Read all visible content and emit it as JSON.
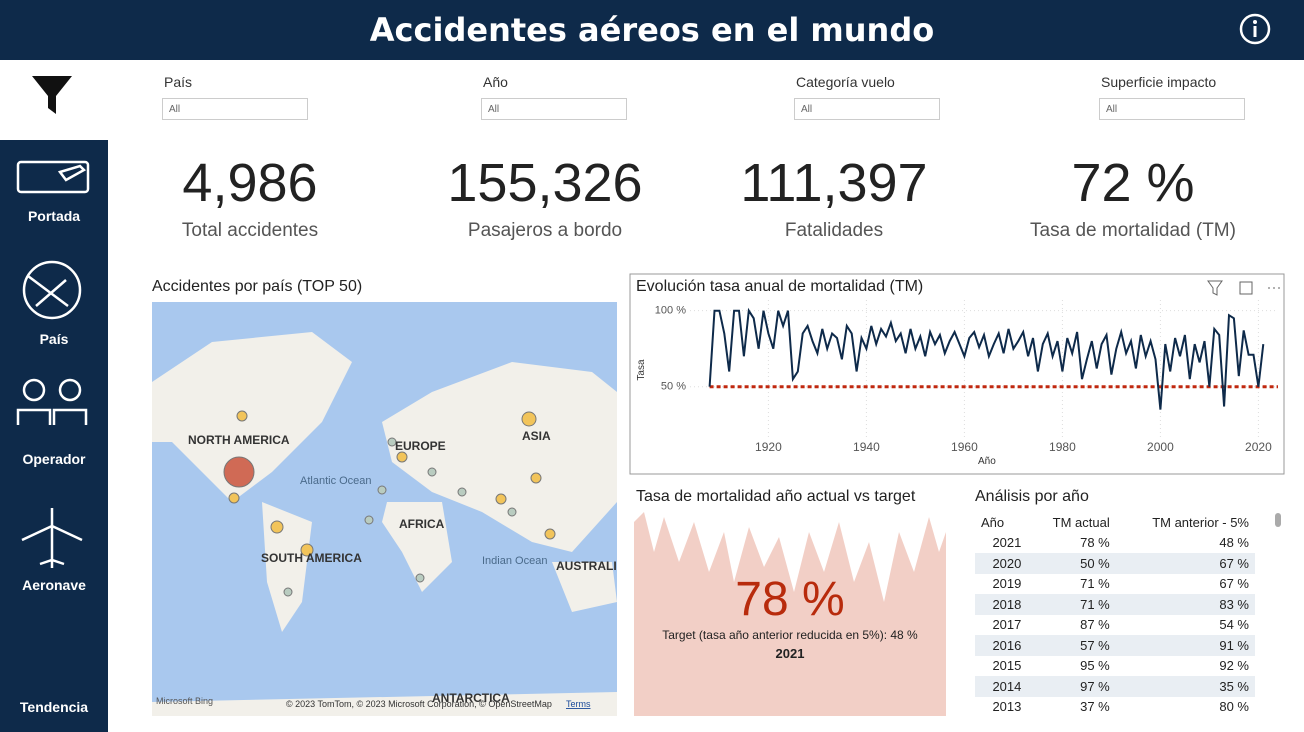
{
  "header": {
    "title": "Accidentes aéreos en el mundo"
  },
  "nav": [
    "Portada",
    "País",
    "Operador",
    "Aeronave",
    "Tendencia"
  ],
  "filters": [
    {
      "label": "País",
      "value": "All"
    },
    {
      "label": "Año",
      "value": "All"
    },
    {
      "label": "Categoría vuelo",
      "value": "All"
    },
    {
      "label": "Superficie impacto",
      "value": "All"
    }
  ],
  "kpis": [
    {
      "value": "4,986",
      "label": "Total accidentes"
    },
    {
      "value": "155,326",
      "label": "Pasajeros a bordo"
    },
    {
      "value": "111,397",
      "label": "Fatalidades"
    },
    {
      "value": "72 %",
      "label": "Tasa de mortalidad (TM)"
    }
  ],
  "map": {
    "title": "Accidentes por país (TOP 50)",
    "labels": [
      "NORTH AMERICA",
      "EUROPE",
      "ASIA",
      "AFRICA",
      "SOUTH AMERICA",
      "AUSTRALIA",
      "ANTARCTICA"
    ],
    "oceans": [
      "Atlantic Ocean",
      "Indian Ocean"
    ],
    "logo": "Microsoft Bing",
    "attribution": "© 2023 TomTom, © 2023 Microsoft Corporation, © OpenStreetMap",
    "terms": "Terms"
  },
  "chart_data": {
    "type": "line",
    "title": "Evolución tasa anual de mortalidad (TM)",
    "y_label": "Tasa",
    "x_label": "Año",
    "x": [
      1908,
      1909,
      1910,
      1911,
      1912,
      1913,
      1914,
      1915,
      1916,
      1917,
      1918,
      1919,
      1920,
      1921,
      1922,
      1923,
      1924,
      1925,
      1926,
      1927,
      1928,
      1929,
      1930,
      1931,
      1932,
      1933,
      1934,
      1935,
      1936,
      1937,
      1938,
      1939,
      1940,
      1941,
      1942,
      1943,
      1944,
      1945,
      1946,
      1947,
      1948,
      1949,
      1950,
      1951,
      1952,
      1953,
      1954,
      1955,
      1956,
      1957,
      1958,
      1959,
      1960,
      1961,
      1962,
      1963,
      1964,
      1965,
      1966,
      1967,
      1968,
      1969,
      1970,
      1971,
      1972,
      1973,
      1974,
      1975,
      1976,
      1977,
      1978,
      1979,
      1980,
      1981,
      1982,
      1983,
      1984,
      1985,
      1986,
      1987,
      1988,
      1989,
      1990,
      1991,
      1992,
      1993,
      1994,
      1995,
      1996,
      1997,
      1998,
      1999,
      2000,
      2001,
      2002,
      2003,
      2004,
      2005,
      2006,
      2007,
      2008,
      2009,
      2010,
      2011,
      2012,
      2013,
      2014,
      2015,
      2016,
      2017,
      2018,
      2019,
      2020,
      2021
    ],
    "series": [
      {
        "name": "TM",
        "color": "#0e2a4a",
        "values": [
          50,
          100,
          100,
          85,
          60,
          100,
          100,
          70,
          100,
          95,
          75,
          100,
          85,
          75,
          100,
          90,
          100,
          55,
          60,
          85,
          90,
          80,
          72,
          88,
          75,
          85,
          82,
          68,
          90,
          85,
          60,
          82,
          75,
          90,
          78,
          88,
          83,
          92,
          80,
          85,
          72,
          88,
          75,
          83,
          70,
          86,
          78,
          84,
          72,
          80,
          86,
          78,
          70,
          82,
          86,
          76,
          84,
          70,
          78,
          85,
          72,
          88,
          75,
          80,
          86,
          70,
          82,
          60,
          78,
          85,
          70,
          80,
          60,
          82,
          72,
          86,
          55,
          68,
          80,
          62,
          78,
          84,
          58,
          75,
          86,
          72,
          80,
          62,
          84,
          70,
          80,
          68,
          35,
          78,
          60,
          82,
          70,
          84,
          55,
          78,
          66,
          80,
          50,
          88,
          84,
          37,
          97,
          95,
          57,
          87,
          71,
          71,
          50,
          78
        ]
      }
    ],
    "target": 50,
    "target_color": "#c0280f",
    "xlim": [
      1904,
      2024
    ],
    "ylim": [
      15,
      107
    ],
    "xticks": [
      1920,
      1940,
      1960,
      1980,
      2000,
      2020
    ],
    "yticks": [
      {
        "value": 50,
        "label": "50 %"
      },
      {
        "value": 100,
        "label": "100 %"
      }
    ]
  },
  "card": {
    "title": "Tasa de mortalidad año actual vs target",
    "value": "78 %",
    "target": "Target (tasa año anterior reducida en 5%): 48 %",
    "year": "2021"
  },
  "table": {
    "title": "Análisis por año",
    "columns": [
      "Año",
      "TM actual",
      "TM anterior - 5%"
    ],
    "rows": [
      [
        "2021",
        "78 %",
        "48 %"
      ],
      [
        "2020",
        "50 %",
        "67 %"
      ],
      [
        "2019",
        "71 %",
        "67 %"
      ],
      [
        "2018",
        "71 %",
        "83 %"
      ],
      [
        "2017",
        "87 %",
        "54 %"
      ],
      [
        "2016",
        "57 %",
        "91 %"
      ],
      [
        "2015",
        "95 %",
        "92 %"
      ],
      [
        "2014",
        "97 %",
        "35 %"
      ],
      [
        "2013",
        "37 %",
        "80 %"
      ]
    ]
  }
}
